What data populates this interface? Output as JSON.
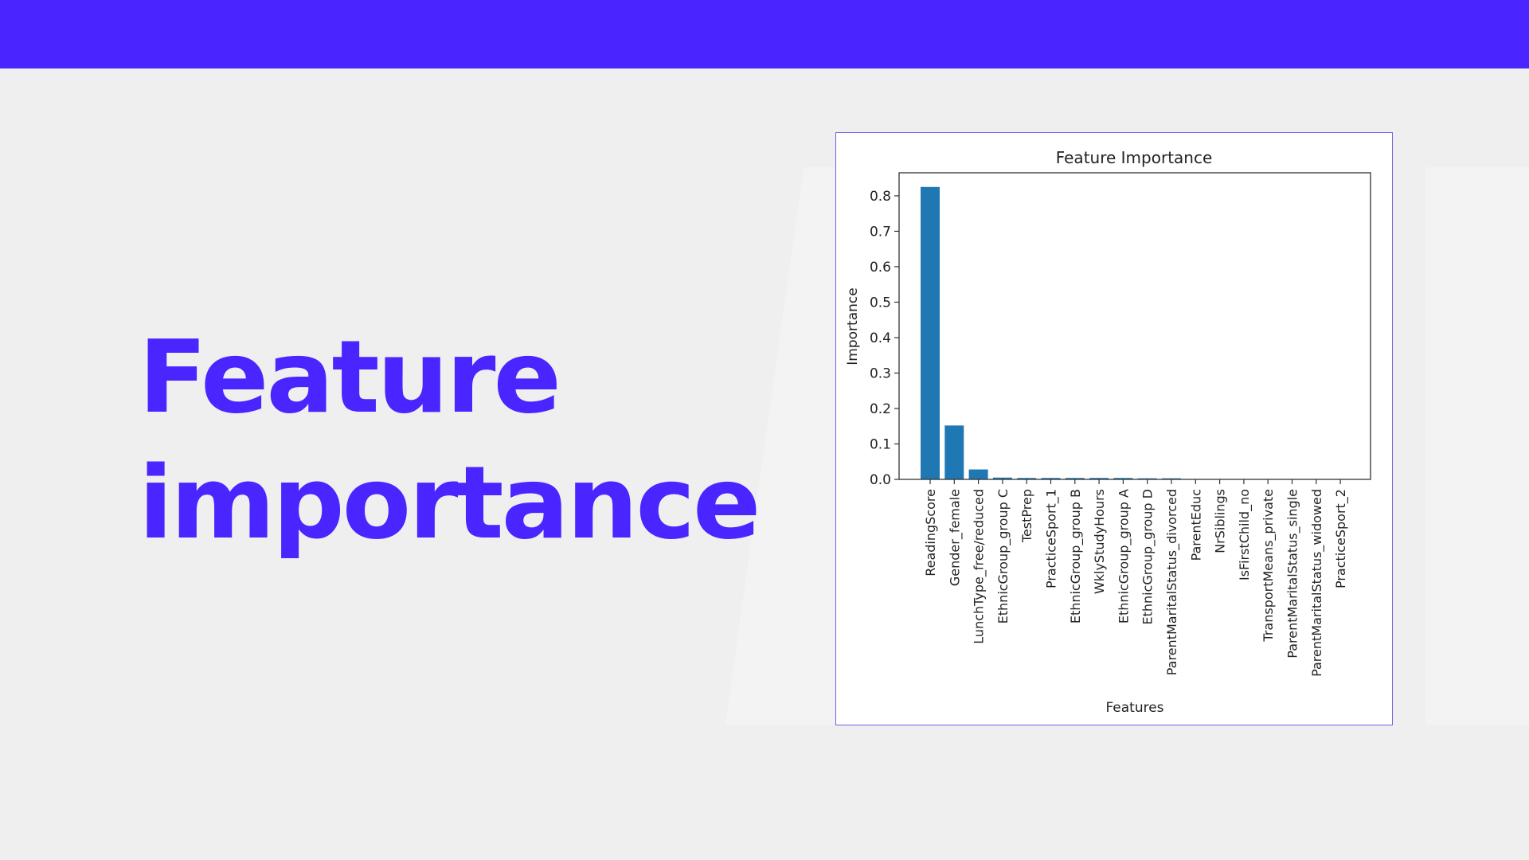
{
  "colors": {
    "band": "#4a25ff",
    "title": "#4a25ff",
    "bar": "#1f77b4"
  },
  "slide": {
    "title_line1": "Feature",
    "title_line2": "importance"
  },
  "chart_data": {
    "type": "bar",
    "title": "Feature Importance",
    "xlabel": "Features",
    "ylabel": "Importance",
    "ylim": [
      0,
      0.865
    ],
    "yticks": [
      0.0,
      0.1,
      0.2,
      0.3,
      0.4,
      0.5,
      0.6,
      0.7,
      0.8
    ],
    "grid": false,
    "categories": [
      "ReadingScore",
      "Gender_female",
      "LunchType_free/reduced",
      "EthnicGroup_group C",
      "TestPrep",
      "PracticeSport_1",
      "EthnicGroup_group B",
      "WklyStudyHours",
      "EthnicGroup_group A",
      "EthnicGroup_group D",
      "ParentMaritalStatus_divorced",
      "ParentEduc",
      "NrSiblings",
      "IsFirstChild_no",
      "TransportMeans_private",
      "ParentMaritalStatus_single",
      "ParentMaritalStatus_widowed",
      "PracticeSport_2"
    ],
    "values": [
      0.825,
      0.152,
      0.028,
      0.005,
      0.004,
      0.004,
      0.004,
      0.004,
      0.004,
      0.003,
      0.003,
      0.001,
      0.0005,
      0.0003,
      0.0002,
      0.0001,
      0.0001,
      0.0001
    ]
  }
}
